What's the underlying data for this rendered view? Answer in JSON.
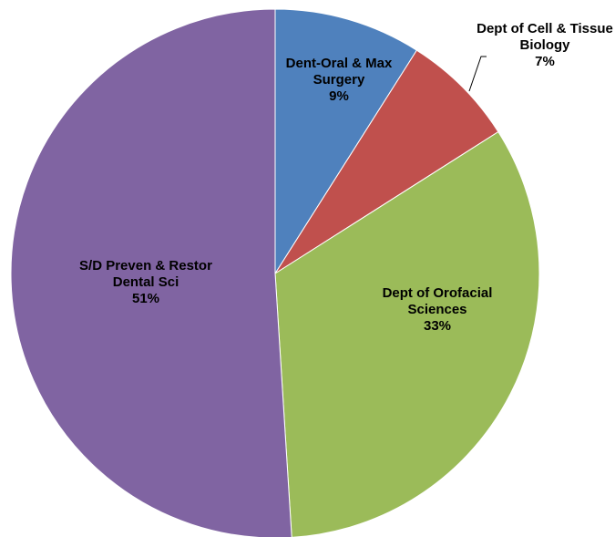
{
  "chart_data": {
    "type": "pie",
    "categories": [
      "Dent-Oral & Max Surgery",
      "Dept of Cell & Tissue Biology",
      "Dept of Orofacial Sciences",
      "S/D Preven & Restor Dental Sci"
    ],
    "values": [
      9,
      7,
      33,
      51
    ],
    "value_labels": [
      "9%",
      "7%",
      "33%",
      "51%"
    ],
    "colors": [
      "#4f81bd",
      "#c0504d",
      "#9bbb59",
      "#8064a2"
    ]
  }
}
